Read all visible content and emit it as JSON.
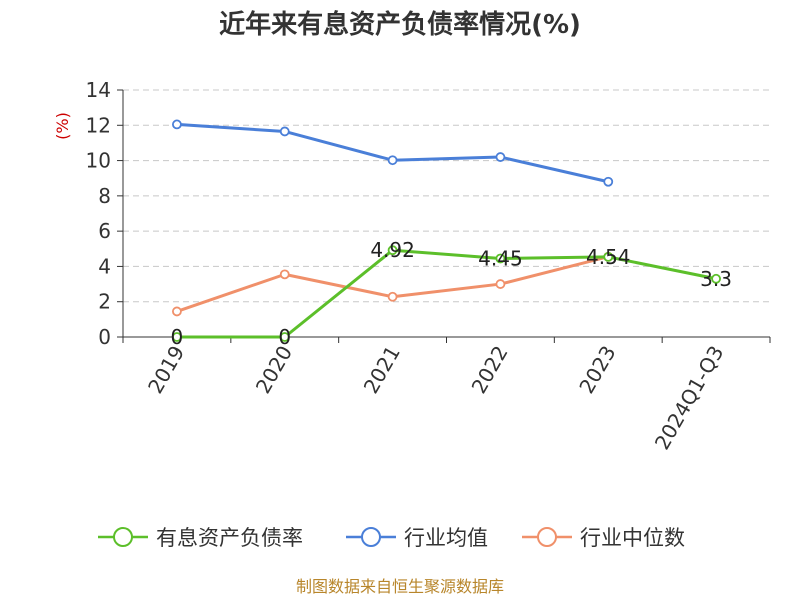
{
  "chart_data": {
    "type": "line",
    "title": "近年来有息资产负债率情况(%)",
    "ylabel": "(%)",
    "categories": [
      "2019",
      "2020",
      "2021",
      "2022",
      "2023",
      "2024Q1-Q3"
    ],
    "ylim": [
      0,
      14
    ],
    "yticks": [
      "0",
      "2",
      "4",
      "6",
      "8",
      "10",
      "12",
      "14"
    ],
    "grid": true,
    "legend_position": "bottom",
    "series": [
      {
        "name": "有息资产负债率",
        "color": "#5cbf2a",
        "values": [
          0,
          0,
          4.92,
          4.45,
          4.54,
          3.3
        ],
        "labels": [
          "0",
          "0",
          "4.92",
          "4.45",
          "4.54",
          "3.3"
        ]
      },
      {
        "name": "行业均值",
        "color": "#4a7fd8",
        "values": [
          12.05,
          11.65,
          10.02,
          10.2,
          8.8,
          null
        ]
      },
      {
        "name": "行业中位数",
        "color": "#f0906a",
        "values": [
          1.45,
          3.55,
          2.28,
          3.0,
          4.55,
          null
        ]
      }
    ]
  },
  "source": "制图数据来自恒生聚源数据库"
}
